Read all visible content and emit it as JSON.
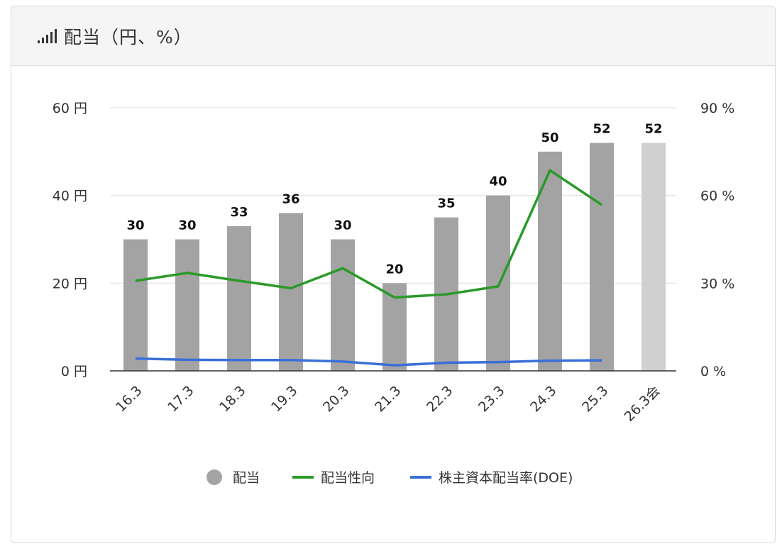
{
  "header": {
    "title": "配当（円、%）",
    "icon": "bar-chart-icon"
  },
  "chart_data": {
    "type": "bar",
    "title": "配当（円、%）",
    "categories": [
      "16.3",
      "17.3",
      "18.3",
      "19.3",
      "20.3",
      "21.3",
      "22.3",
      "23.3",
      "24.3",
      "25.3",
      "26.3会"
    ],
    "series": [
      {
        "name": "配当",
        "type": "bar",
        "axis": "left",
        "values": [
          30,
          30,
          33,
          36,
          30,
          20,
          35,
          40,
          50,
          52,
          52
        ],
        "labels": [
          "30",
          "30",
          "33",
          "36",
          "30",
          "20",
          "35",
          "40",
          "50",
          "52",
          "52"
        ],
        "colors": [
          "#a3a3a3",
          "#a3a3a3",
          "#a3a3a3",
          "#a3a3a3",
          "#a3a3a3",
          "#a3a3a3",
          "#a3a3a3",
          "#a3a3a3",
          "#a3a3a3",
          "#a3a3a3",
          "#d0d0d0"
        ]
      },
      {
        "name": "配当性向",
        "type": "line",
        "axis": "right",
        "color": "#2a9a2a",
        "values": [
          30.8,
          33.5,
          30.8,
          28.3,
          35.1,
          25.1,
          26.2,
          28.9,
          68.6,
          56.8,
          null
        ]
      },
      {
        "name": "株主資本配当率(DOE)",
        "type": "line",
        "axis": "right",
        "color": "#3a6fd8",
        "values": [
          4.2,
          3.8,
          3.7,
          3.7,
          3.2,
          1.9,
          2.8,
          3.0,
          3.5,
          3.6,
          null
        ]
      }
    ],
    "y_left": {
      "ylim": [
        0,
        60
      ],
      "ticks": [
        "0 円",
        "20 円",
        "40 円",
        "60 円"
      ],
      "values": [
        0,
        20,
        40,
        60
      ]
    },
    "y_right": {
      "ylim": [
        0,
        90
      ],
      "ticks": [
        "0 %",
        "30 %",
        "60 %",
        "90 %"
      ],
      "values": [
        0,
        30,
        60,
        90
      ]
    },
    "legend": {
      "position": "bottom",
      "items": [
        {
          "label": "配当",
          "marker": "circle",
          "color": "#a3a3a3"
        },
        {
          "label": "配当性向",
          "marker": "line",
          "color": "#2a9a2a"
        },
        {
          "label": "株主資本配当率(DOE)",
          "marker": "line",
          "color": "#3a6fd8"
        }
      ]
    },
    "grid": true
  }
}
